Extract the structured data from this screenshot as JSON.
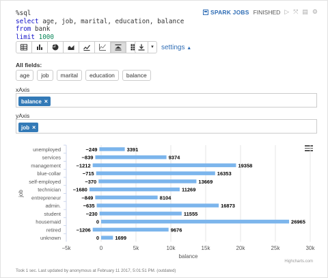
{
  "code": {
    "line1": "%sql",
    "line2_kw": "select",
    "line2_rest": " age, job, marital, education, balance",
    "line3_kw": "from",
    "line3_rest": " bank",
    "line4_kw": "limit",
    "line4_num": " 1000"
  },
  "status": {
    "spark_jobs": "SPARK JOBS",
    "finished": "FINISHED"
  },
  "toolbar": {
    "buttons": [
      "table-icon",
      "bar-chart-icon",
      "pie-chart-icon",
      "area-chart-icon",
      "line-chart-icon",
      "scatter-chart-icon",
      "stacked-chart-icon",
      "grid-icon"
    ],
    "active_index": 6,
    "settings_label": "settings"
  },
  "fields": {
    "label": "All fields:",
    "items": [
      "age",
      "job",
      "marital",
      "education",
      "balance"
    ]
  },
  "xaxis": {
    "label": "xAxis",
    "tag": "balance"
  },
  "yaxis": {
    "label": "yAxis",
    "tag": "job"
  },
  "chart_data": {
    "type": "bar",
    "orientation": "horizontal",
    "categories": [
      "unemployed",
      "services",
      "management",
      "blue-collar",
      "self-employed",
      "technician",
      "entrepreneur",
      "admin.",
      "student",
      "housemaid",
      "retired",
      "unknown"
    ],
    "series": [
      {
        "values": [
          -249,
          -839,
          -1212,
          -715,
          -370,
          -1680,
          -849,
          -635,
          -230,
          0,
          -1206,
          0
        ]
      },
      {
        "values": [
          3391,
          9374,
          19358,
          16353,
          13669,
          11269,
          8104,
          16873,
          11555,
          26965,
          9676,
          1699
        ]
      }
    ],
    "xlabel": "balance",
    "ylabel": "job",
    "xlim": [
      -5000,
      30000
    ],
    "xticks": [
      "−5k",
      "0",
      "5k",
      "10k",
      "15k",
      "20k",
      "25k",
      "30k"
    ],
    "grid": true,
    "bar_color": "#7cb5ec",
    "credit": "Highcharts.com"
  },
  "footer": "Took 1 sec. Last updated by anonymous at February 11 2017, 5:01:51 PM. (outdated)"
}
